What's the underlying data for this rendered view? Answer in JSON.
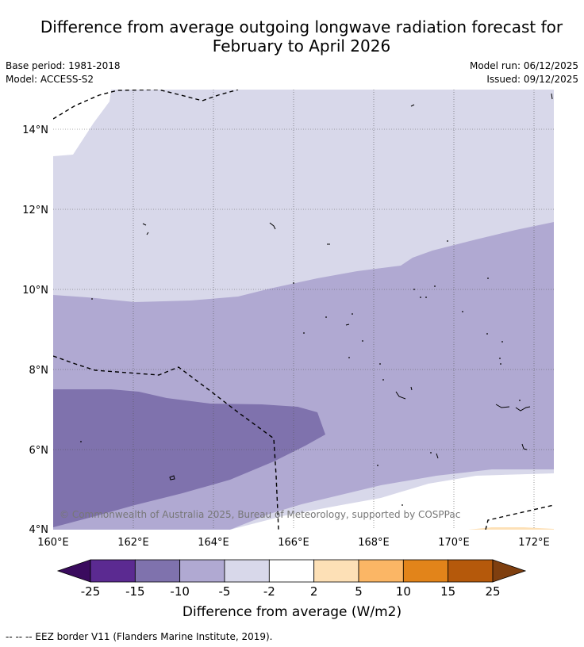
{
  "header": {
    "title_line1": "Difference from average outgoing longwave radiation forecast for",
    "title_line2": "February to April 2026",
    "base_period": "Base period: 1981-2018",
    "model": "Model: ACCESS-S2",
    "model_run": "Model run: 06/12/2025",
    "issued": "Issued: 09/12/2025"
  },
  "map": {
    "lon_range": [
      160,
      172.5
    ],
    "lat_range": [
      4,
      15
    ],
    "x_ticks": [
      {
        "value": 160,
        "label": "160°E"
      },
      {
        "value": 162,
        "label": "162°E"
      },
      {
        "value": 164,
        "label": "164°E"
      },
      {
        "value": 166,
        "label": "166°E"
      },
      {
        "value": 168,
        "label": "168°E"
      },
      {
        "value": 170,
        "label": "170°E"
      },
      {
        "value": 172,
        "label": "172°E"
      }
    ],
    "y_ticks": [
      {
        "value": 4,
        "label": "4°N"
      },
      {
        "value": 6,
        "label": "6°N"
      },
      {
        "value": 8,
        "label": "8°N"
      },
      {
        "value": 10,
        "label": "10°N"
      },
      {
        "value": 12,
        "label": "12°N"
      },
      {
        "value": 14,
        "label": "14°N"
      }
    ],
    "copyright": "© Commonwealth of Australia 2025, Bureau of Meteorology, supported by COSPPac"
  },
  "colorbar": {
    "ticks": [
      "-25",
      "-15",
      "-10",
      "-5",
      "-2",
      "2",
      "5",
      "10",
      "15",
      "25"
    ],
    "colors": [
      "#5b2a91",
      "#7f72ad",
      "#b0a9d2",
      "#d8d8ea",
      "#ffffff",
      "#fde0b6",
      "#fbb665",
      "#e2841a",
      "#b5590b"
    ],
    "extend_low_color": "#3a0b5e",
    "extend_high_color": "#7f3f0f",
    "label": "Difference from average (W/m2)"
  },
  "legend": {
    "eez_note": "-- -- -- EEZ border V11 (Flanders Marine Institute, 2019)."
  }
}
